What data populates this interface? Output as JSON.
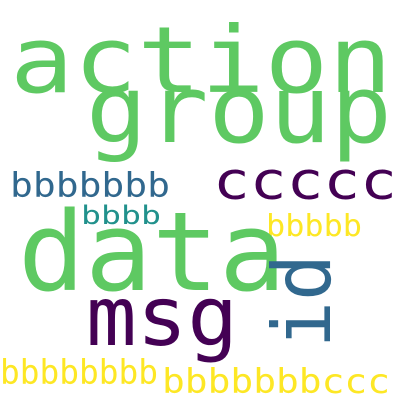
{
  "words": [
    {
      "text": "action",
      "color": "#5ec962"
    },
    {
      "text": "group",
      "color": "#5ec962"
    },
    {
      "text": "bbbbbbb",
      "color": "#31688e"
    },
    {
      "text": "ccccc",
      "color": "#440154"
    },
    {
      "text": "bbbb",
      "color": "#21918c"
    },
    {
      "text": "bbbbb",
      "color": "#fde725"
    },
    {
      "text": "data",
      "color": "#5ec962"
    },
    {
      "text": "id",
      "color": "#31688e"
    },
    {
      "text": "msg",
      "color": "#440154"
    },
    {
      "text": "bbbbbbbb",
      "color": "#fde725"
    },
    {
      "text": "bbbbbbbccc",
      "color": "#fde725"
    }
  ]
}
